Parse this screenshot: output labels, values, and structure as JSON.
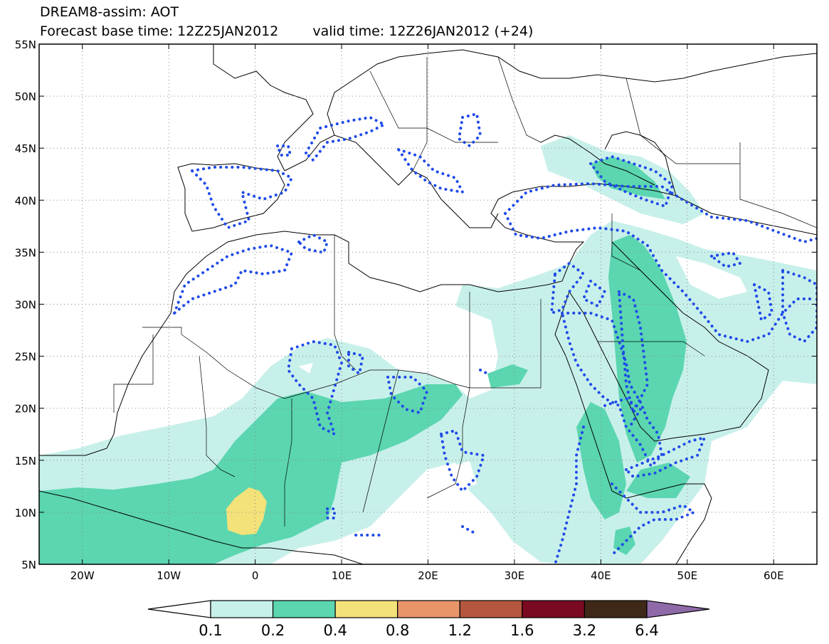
{
  "title": {
    "line1": "DREAM8-assim: AOT",
    "base_time": "Forecast base time: 12Z25JAN2012",
    "valid_time": "valid time: 12Z26JAN2012 (+24)"
  },
  "map": {
    "lon_range": [
      -25,
      65
    ],
    "lat_range": [
      5,
      55
    ],
    "lat_ticks": [
      "55N",
      "50N",
      "45N",
      "40N",
      "35N",
      "30N",
      "25N",
      "20N",
      "15N",
      "10N",
      "5N"
    ],
    "lon_ticks": [
      "20W",
      "10W",
      "0",
      "10E",
      "20E",
      "30E",
      "40E",
      "50E",
      "60E"
    ]
  },
  "legend": {
    "colors": [
      "#ffffff",
      "#c8f0ea",
      "#5bd6b0",
      "#f3e27a",
      "#e8956a",
      "#b5573f",
      "#7a0a22",
      "#3f2818",
      "#8f6aa8"
    ],
    "values": [
      "0.1",
      "0.2",
      "0.4",
      "0.8",
      "1.2",
      "1.6",
      "3.2",
      "6.4"
    ]
  }
}
